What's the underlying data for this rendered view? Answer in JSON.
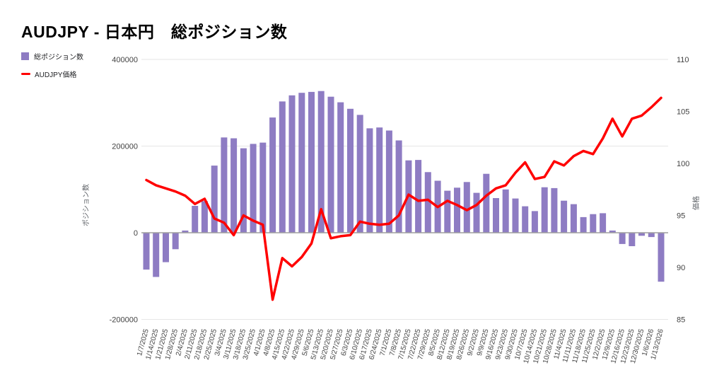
{
  "title": "AUDJPY - 日本円　総ポジション数",
  "legend": {
    "positions_label": "総ポジション数",
    "price_label": "AUDJPY価格"
  },
  "colors": {
    "bar": "#8e7cc3",
    "line": "#ff0000",
    "gridline": "#e6e6e6",
    "zero_line": "#9e9e9e",
    "tick_text": "#424242",
    "axis_title_text": "#5f6368"
  },
  "left_axis": {
    "title": "ポジション数",
    "ticks": [
      400000,
      200000,
      0,
      -200000
    ],
    "min": -200000,
    "max": 400000
  },
  "right_axis": {
    "title": "価格",
    "ticks": [
      110,
      105,
      100,
      95,
      90,
      85
    ],
    "min": 85,
    "max": 110
  },
  "chart_data": {
    "type": "bar",
    "title": "AUDJPY - 日本円　総ポジション数",
    "xlabel": "",
    "ylabel_left": "ポジション数",
    "ylabel_right": "価格",
    "ylim_left": [
      -200000,
      400000
    ],
    "ylim_right": [
      85,
      110
    ],
    "grid": true,
    "legend_position": "top-left",
    "categories": [
      "1/7/2025",
      "1/14/2025",
      "1/21/2025",
      "1/28/2025",
      "2/4/2025",
      "2/11/2025",
      "2/18/2025",
      "2/25/2025",
      "3/4/2025",
      "3/11/2025",
      "3/18/2025",
      "3/25/2025",
      "4/1/2025",
      "4/8/2025",
      "4/15/2025",
      "4/22/2025",
      "4/29/2025",
      "5/6/2025",
      "5/13/2025",
      "5/20/2025",
      "5/27/2025",
      "6/3/2025",
      "6/10/2025",
      "6/17/2025",
      "6/24/2025",
      "7/1/2025",
      "7/8/2025",
      "7/15/2025",
      "7/22/2025",
      "7/29/2025",
      "8/5/2025",
      "8/12/2025",
      "8/19/2025",
      "8/26/2025",
      "9/2/2025",
      "9/9/2025",
      "9/16/2025",
      "9/23/2025",
      "9/30/2025",
      "10/7/2025",
      "10/14/2025",
      "10/21/2025",
      "10/28/2025",
      "11/4/2025",
      "11/11/2025",
      "11/18/2025",
      "11/25/2025",
      "12/2/2025",
      "12/9/2025",
      "12/16/2025",
      "12/23/2025",
      "12/30/2025",
      "1/6/2026",
      "1/13/2026"
    ],
    "series": [
      {
        "name": "総ポジション数",
        "type": "bar",
        "axis": "left",
        "color": "#8e7cc3",
        "values": [
          -85000,
          -102000,
          -68000,
          -38000,
          5000,
          62000,
          73000,
          155000,
          220000,
          218000,
          195000,
          205000,
          208000,
          266000,
          303000,
          317000,
          323000,
          325000,
          327000,
          314000,
          301000,
          286000,
          272000,
          241000,
          243000,
          236000,
          213000,
          167000,
          168000,
          140000,
          120000,
          97000,
          104000,
          117000,
          92000,
          136000,
          80000,
          100000,
          79000,
          61000,
          50000,
          105000,
          103000,
          74000,
          66000,
          36000,
          43000,
          45000,
          5000,
          -26000,
          -31000,
          -7000,
          -10000,
          -113000
        ]
      },
      {
        "name": "AUDJPY価格",
        "type": "line",
        "axis": "right",
        "color": "#ff0000",
        "values": [
          98.4,
          97.9,
          97.6,
          97.3,
          96.9,
          96.1,
          96.6,
          94.7,
          94.3,
          93.1,
          95.0,
          94.5,
          94.1,
          86.9,
          90.9,
          90.1,
          91.0,
          92.3,
          95.6,
          92.8,
          93.0,
          93.1,
          94.4,
          94.2,
          94.1,
          94.2,
          95.0,
          97.0,
          96.4,
          96.5,
          95.8,
          96.4,
          96.0,
          95.5,
          96.0,
          96.9,
          97.6,
          97.9,
          99.1,
          100.1,
          98.5,
          98.7,
          100.2,
          99.8,
          100.7,
          101.2,
          100.9,
          102.4,
          104.3,
          102.6,
          104.3,
          104.6,
          105.4,
          106.3
        ]
      }
    ]
  }
}
